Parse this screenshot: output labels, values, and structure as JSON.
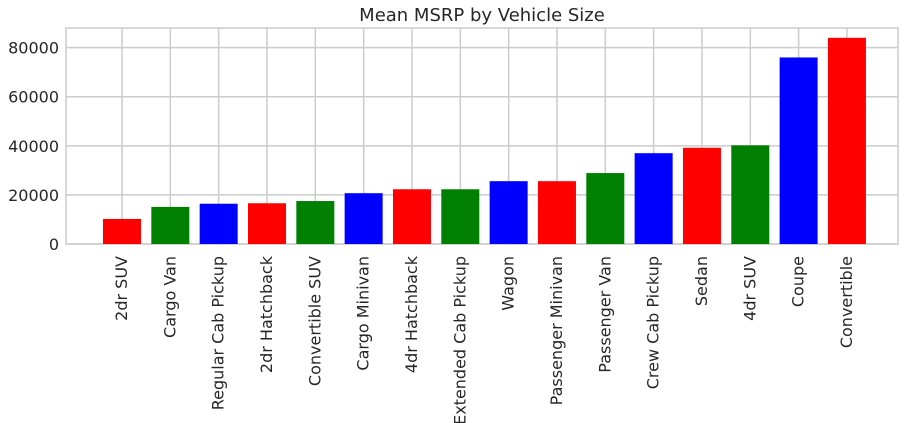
{
  "chart_data": {
    "type": "bar",
    "title": "Mean MSRP by Vehicle Size",
    "xlabel": "",
    "ylabel": "",
    "ylim": [
      0,
      88000
    ],
    "yticks": [
      0,
      20000,
      40000,
      60000,
      80000
    ],
    "grid": true,
    "categories": [
      "2dr SUV",
      "Cargo Van",
      "Regular Cab Pickup",
      "2dr Hatchback",
      "Convertible SUV",
      "Cargo Minivan",
      "4dr Hatchback",
      "Extended Cab Pickup",
      "Wagon",
      "Passenger Minivan",
      "Passenger Van",
      "Crew Cab Pickup",
      "Sedan",
      "4dr SUV",
      "Coupe",
      "Convertible"
    ],
    "values": [
      10200,
      15100,
      16400,
      16600,
      17500,
      20700,
      22300,
      22300,
      25600,
      25600,
      28900,
      37000,
      39200,
      40200,
      76000,
      84000
    ],
    "colors": [
      "#ff0000",
      "#008000",
      "#0000ff",
      "#ff0000",
      "#008000",
      "#0000ff",
      "#ff0000",
      "#008000",
      "#0000ff",
      "#ff0000",
      "#008000",
      "#0000ff",
      "#ff0000",
      "#008000",
      "#0000ff",
      "#ff0000"
    ]
  }
}
